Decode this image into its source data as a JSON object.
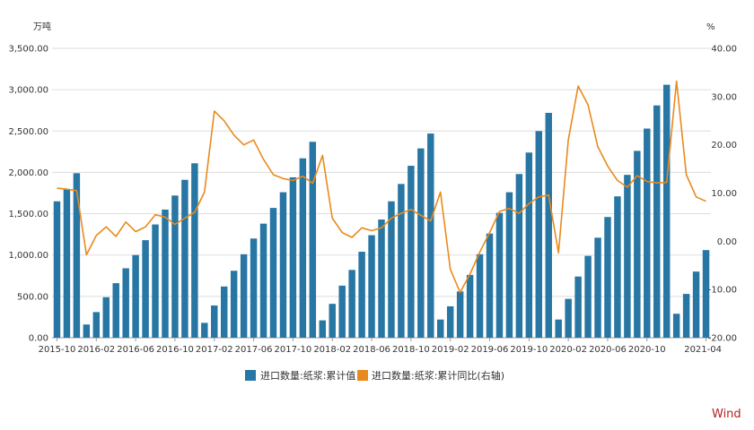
{
  "chart_data": {
    "type": "bar",
    "left_unit": "万吨",
    "right_unit": "%",
    "left_axis": {
      "min": 0,
      "max": 3500,
      "step": 500,
      "tick_labels": [
        "0.00",
        "500.00",
        "1,000.00",
        "1,500.00",
        "2,000.00",
        "2,500.00",
        "3,000.00",
        "3,500.00"
      ]
    },
    "right_axis": {
      "min": -20,
      "max": 40,
      "step": 10,
      "tick_labels": [
        "-20.00",
        "-10.00",
        "0.00",
        "10.00",
        "20.00",
        "30.00",
        "40.00"
      ]
    },
    "x_tick_labels": [
      "2015-10",
      "2016-02",
      "2016-06",
      "2016-10",
      "2017-02",
      "2017-06",
      "2017-10",
      "2018-02",
      "2018-06",
      "2018-10",
      "2019-02",
      "2019-06",
      "2019-10",
      "2020-02",
      "2020-06",
      "2020-10",
      "2021-04"
    ],
    "grid": "horizontal",
    "legend_position": "bottom",
    "colors": {
      "bar": "#2776a3",
      "line": "#e98a1c"
    },
    "categories": [
      "2015-10",
      "2015-11",
      "2015-12",
      "2016-01",
      "2016-02",
      "2016-03",
      "2016-04",
      "2016-05",
      "2016-06",
      "2016-07",
      "2016-08",
      "2016-09",
      "2016-10",
      "2016-11",
      "2016-12",
      "2017-01",
      "2017-02",
      "2017-03",
      "2017-04",
      "2017-05",
      "2017-06",
      "2017-07",
      "2017-08",
      "2017-09",
      "2017-10",
      "2017-11",
      "2017-12",
      "2018-01",
      "2018-02",
      "2018-03",
      "2018-04",
      "2018-05",
      "2018-06",
      "2018-07",
      "2018-08",
      "2018-09",
      "2018-10",
      "2018-11",
      "2018-12",
      "2019-01",
      "2019-02",
      "2019-03",
      "2019-04",
      "2019-05",
      "2019-06",
      "2019-07",
      "2019-08",
      "2019-09",
      "2019-10",
      "2019-11",
      "2019-12",
      "2020-01",
      "2020-02",
      "2020-03",
      "2020-04",
      "2020-05",
      "2020-06",
      "2020-07",
      "2020-08",
      "2020-09",
      "2020-10",
      "2020-11",
      "2020-12",
      "2021-01",
      "2021-02",
      "2021-03",
      "2021-04"
    ],
    "series": [
      {
        "name": "进口数量:纸浆:累计值",
        "axis": "left",
        "kind": "bar",
        "values": [
          1650,
          1800,
          1990,
          160,
          310,
          490,
          660,
          840,
          1000,
          1180,
          1370,
          1550,
          1720,
          1910,
          2110,
          180,
          390,
          620,
          810,
          1010,
          1200,
          1380,
          1570,
          1760,
          1940,
          2170,
          2370,
          210,
          410,
          630,
          820,
          1040,
          1240,
          1430,
          1650,
          1860,
          2080,
          2290,
          2470,
          220,
          380,
          560,
          760,
          1010,
          1260,
          1510,
          1760,
          1980,
          2240,
          2500,
          2720,
          220,
          470,
          740,
          990,
          1210,
          1460,
          1710,
          1970,
          2260,
          2530,
          2810,
          3060,
          290,
          530,
          800,
          1060
        ]
      },
      {
        "name": "进口数量:纸浆:累计同比(右轴)",
        "axis": "right",
        "kind": "line",
        "values": [
          11,
          10.8,
          10.5,
          -2.8,
          1.2,
          3,
          1,
          4,
          2,
          3,
          5.5,
          5,
          3.5,
          4.8,
          6,
          10.2,
          27,
          25,
          22,
          20,
          21,
          17,
          13.8,
          13,
          12.6,
          13.5,
          12,
          17.8,
          4.8,
          1.8,
          0.8,
          2.8,
          2.2,
          2.8,
          4.8,
          5.8,
          6.6,
          5.4,
          4.2,
          10.2,
          -5.8,
          -10.6,
          -6.8,
          -2.2,
          1.8,
          6.2,
          6.8,
          5.8,
          7.8,
          9.2,
          9.6,
          -2.4,
          21,
          32.2,
          28.3,
          19.6,
          15.6,
          12.6,
          11.2,
          13.6,
          12.4,
          12.1,
          12.2,
          33.2,
          13.8,
          9.2,
          8.3
        ]
      }
    ]
  },
  "brand": "Wind"
}
